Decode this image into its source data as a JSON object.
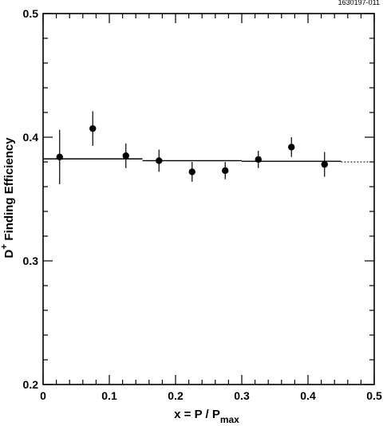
{
  "chart_data": {
    "type": "scatter",
    "title": "",
    "corner_label": "1630197-011",
    "xlabel": {
      "main": "x = P / P",
      "subscript": "max"
    },
    "ylabel": {
      "prefix": "D",
      "superscript": "+",
      "main": " Finding  Efficiency"
    },
    "xlim": [
      0,
      0.5
    ],
    "ylim": [
      0.2,
      0.5
    ],
    "x_ticks": [
      0,
      0.1,
      0.2,
      0.3,
      0.4,
      0.5
    ],
    "x_tick_labels": [
      "0",
      "0.1",
      "0.2",
      "0.3",
      "0.4",
      "0.5"
    ],
    "y_ticks": [
      0.2,
      0.3,
      0.4,
      0.5
    ],
    "y_tick_labels": [
      "0.2",
      "0.3",
      "0.4",
      "0.5"
    ],
    "grid": false,
    "series": [
      {
        "points": [
          {
            "x": 0.025,
            "y": 0.384,
            "err": 0.022
          },
          {
            "x": 0.075,
            "y": 0.407,
            "err": 0.014
          },
          {
            "x": 0.125,
            "y": 0.385,
            "err": 0.01
          },
          {
            "x": 0.175,
            "y": 0.381,
            "err": 0.009
          },
          {
            "x": 0.225,
            "y": 0.372,
            "err": 0.008
          },
          {
            "x": 0.275,
            "y": 0.373,
            "err": 0.007
          },
          {
            "x": 0.325,
            "y": 0.382,
            "err": 0.007
          },
          {
            "x": 0.375,
            "y": 0.392,
            "err": 0.008
          },
          {
            "x": 0.425,
            "y": 0.378,
            "err": 0.01
          }
        ]
      }
    ],
    "fit": {
      "solid_segments": [
        {
          "x0": 0.0,
          "x1": 0.15,
          "y": 0.3825
        },
        {
          "x0": 0.15,
          "x1": 0.3,
          "y": 0.381
        },
        {
          "x0": 0.3,
          "x1": 0.45,
          "y": 0.3805
        }
      ],
      "dotted_segment": {
        "x0": 0.45,
        "x1": 0.5,
        "y": 0.38
      }
    }
  }
}
